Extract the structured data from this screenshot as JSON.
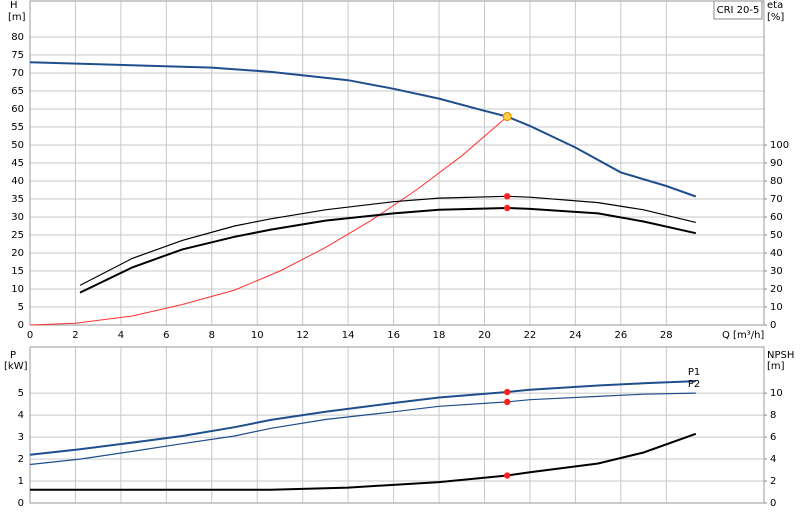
{
  "chart_data": [
    {
      "type": "line",
      "ylabel": "H",
      "yunit": "[m]",
      "y2label": "eta",
      "y2unit": "[%]",
      "xlabel": "Q [m³/h]",
      "annotation": "CRI 20-5",
      "xlim": [
        0,
        32.3
      ],
      "xticks": [
        0,
        2,
        4,
        6,
        8,
        10,
        12,
        14,
        16,
        18,
        20,
        22,
        24,
        26,
        28
      ],
      "ylim": [
        0,
        90
      ],
      "yticks": [
        0,
        5,
        10,
        15,
        20,
        25,
        30,
        35,
        40,
        45,
        50,
        55,
        60,
        65,
        70,
        75,
        80
      ],
      "y2lim": [
        0,
        180
      ],
      "y2ticks": [
        0,
        10,
        20,
        30,
        40,
        50,
        60,
        70,
        80,
        90,
        100
      ],
      "grid": true,
      "series": [
        {
          "color": "#1f4e8c",
          "width": 2,
          "x": [
            0,
            8,
            10.6,
            14,
            16,
            18,
            20,
            21,
            22,
            24,
            26,
            28,
            29.3
          ],
          "values": [
            73,
            71.5,
            70.3,
            68,
            65.6,
            62.9,
            59.5,
            57.9,
            55.3,
            49.3,
            42.4,
            38.6,
            35.7
          ]
        },
        {
          "color": "#ff3030",
          "width": 1,
          "x": [
            0,
            2,
            4.5,
            6.7,
            9,
            11,
            13,
            15,
            17,
            19,
            21
          ],
          "values": [
            0,
            0.5,
            2.5,
            5.7,
            9.7,
            15,
            21.5,
            29,
            37.5,
            47,
            57.9
          ]
        },
        {
          "color": "#000000",
          "width": 1.2,
          "axis": "y2",
          "x": [
            2.2,
            4.5,
            6.7,
            9,
            10.6,
            13,
            16,
            18,
            21,
            22,
            25,
            27,
            29.3
          ],
          "values": [
            22,
            37,
            47,
            55,
            59,
            64,
            68.5,
            70.5,
            71.5,
            71,
            68,
            64,
            57
          ]
        },
        {
          "color": "#000000",
          "width": 2,
          "axis": "y2",
          "x": [
            2.2,
            4.5,
            6.7,
            9,
            10.6,
            13,
            16,
            18,
            21,
            22,
            25,
            27,
            29.3
          ],
          "values": [
            18,
            32,
            42,
            49,
            53,
            58,
            62,
            64,
            65,
            64.5,
            62,
            57.5,
            51
          ]
        },
        {
          "marker": true,
          "color": "#ffd23f",
          "x": [
            21
          ],
          "values": [
            57.9
          ]
        },
        {
          "marker": true,
          "color": "#ff2020",
          "axis": "y2",
          "x": [
            21,
            21
          ],
          "values": [
            71.5,
            65
          ]
        }
      ]
    },
    {
      "type": "line",
      "ylabel": "P",
      "yunit": "[kW]",
      "y2label": "NPSH",
      "y2unit": "[m]",
      "xlim": [
        0,
        32.3
      ],
      "xticks": [
        0,
        2,
        4,
        6,
        8,
        10,
        12,
        14,
        16,
        18,
        20,
        22,
        24,
        26,
        28
      ],
      "ylim": [
        0,
        7.1
      ],
      "yticks": [
        0,
        1,
        2,
        3,
        4,
        5
      ],
      "y2lim": [
        0,
        14.2
      ],
      "y2ticks": [
        0,
        2,
        4,
        6,
        8,
        10
      ],
      "grid": true,
      "series": [
        {
          "name": "P1",
          "color": "#1f4e8c",
          "width": 2,
          "x": [
            0,
            2.2,
            4.5,
            6.7,
            9,
            10.6,
            13,
            16,
            18,
            21,
            22,
            25,
            27,
            29.3
          ],
          "values": [
            2.2,
            2.45,
            2.75,
            3.05,
            3.45,
            3.78,
            4.15,
            4.55,
            4.8,
            5.05,
            5.15,
            5.35,
            5.45,
            5.55
          ]
        },
        {
          "name": "P2",
          "color": "#1f4e8c",
          "width": 1.2,
          "x": [
            0,
            2.2,
            4.5,
            6.7,
            9,
            10.6,
            13,
            16,
            18,
            21,
            22,
            25,
            27,
            29.3
          ],
          "values": [
            1.75,
            2.0,
            2.35,
            2.7,
            3.05,
            3.4,
            3.8,
            4.15,
            4.4,
            4.6,
            4.7,
            4.85,
            4.95,
            5.0
          ]
        },
        {
          "color": "#000000",
          "width": 2,
          "axis": "y2",
          "x": [
            0,
            10.6,
            14,
            18,
            21,
            22,
            25,
            27,
            29.3
          ],
          "values": [
            1.2,
            1.2,
            1.4,
            1.9,
            2.5,
            2.8,
            3.6,
            4.6,
            6.3
          ]
        },
        {
          "marker": true,
          "color": "#ff2020",
          "x": [
            21,
            21
          ],
          "values": [
            5.05,
            4.6
          ]
        },
        {
          "marker": true,
          "color": "#ff2020",
          "axis": "y2",
          "x": [
            21
          ],
          "values": [
            2.5
          ]
        }
      ]
    }
  ]
}
